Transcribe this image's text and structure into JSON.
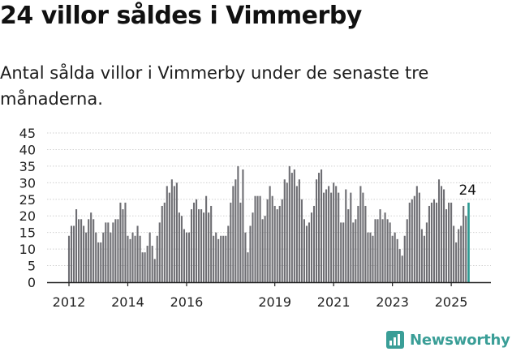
{
  "title": "24 villor såldes i Vimmerby",
  "subtitle": "Antal sålda villor i Vimmerby under de senaste tre månaderna.",
  "brand": {
    "name": "Newsworthy",
    "icon": "newsworthy-bar-chart-icon",
    "color": "#3a9e97"
  },
  "chart_data": {
    "type": "bar",
    "start": "2012-01",
    "y_ticks": [
      0,
      5,
      10,
      15,
      20,
      25,
      30,
      35,
      40,
      45
    ],
    "ylim": [
      0,
      45
    ],
    "grid": true,
    "x_tick_labels": [
      "2012",
      "2014",
      "2016",
      "2019",
      "2021",
      "2023",
      "2025"
    ],
    "x_tick_years": [
      2012,
      2014,
      2016,
      2019,
      2021,
      2023,
      2025
    ],
    "bar_color": "#6e6e73",
    "highlight_color": "#2a9a92",
    "highlight_label": "24",
    "values": [
      14,
      17,
      17,
      22,
      19,
      19,
      17,
      15,
      19,
      21,
      19,
      15,
      12,
      12,
      15,
      18,
      18,
      15,
      18,
      19,
      19,
      24,
      22,
      24,
      14,
      13,
      15,
      14,
      17,
      14,
      9,
      9,
      11,
      15,
      11,
      7,
      14,
      18,
      23,
      24,
      29,
      27,
      31,
      29,
      30,
      21,
      20,
      16,
      15,
      15,
      22,
      24,
      25,
      22,
      22,
      21,
      26,
      21,
      23,
      14,
      15,
      13,
      14,
      14,
      14,
      17,
      24,
      29,
      31,
      35,
      24,
      34,
      15,
      9,
      17,
      21,
      26,
      26,
      26,
      19,
      20,
      25,
      29,
      26,
      23,
      22,
      23,
      25,
      31,
      30,
      35,
      33,
      34,
      29,
      31,
      25,
      19,
      17,
      18,
      21,
      23,
      31,
      33,
      34,
      27,
      28,
      29,
      27,
      30,
      29,
      27,
      18,
      18,
      28,
      22,
      27,
      18,
      19,
      23,
      29,
      27,
      23,
      15,
      15,
      14,
      19,
      19,
      22,
      19,
      21,
      19,
      18,
      14,
      15,
      13,
      10,
      8,
      14,
      19,
      24,
      25,
      26,
      29,
      27,
      16,
      14,
      18,
      23,
      24,
      25,
      24,
      31,
      29,
      28,
      22,
      24,
      24,
      17,
      12,
      16,
      17,
      23,
      20,
      24
    ]
  }
}
